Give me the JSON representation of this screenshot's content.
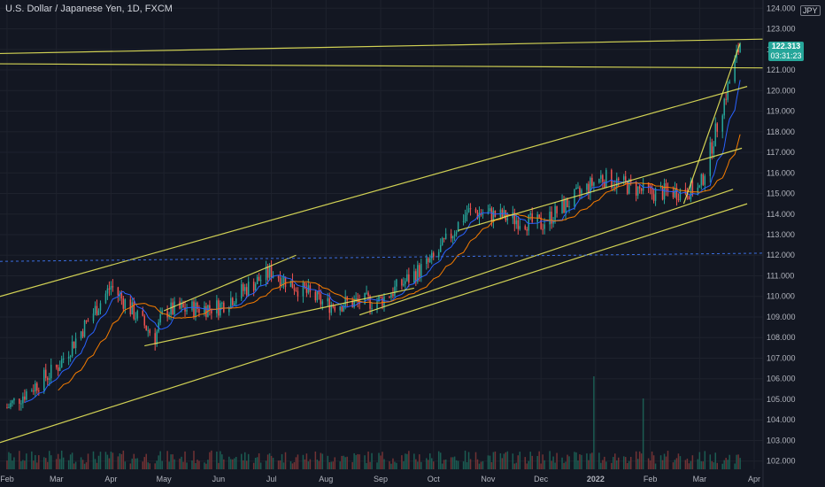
{
  "header": {
    "symbol_title": "U.S. Dollar / Japanese Yen, 1D, FXCM",
    "currency": "JPY"
  },
  "price_tag": {
    "price": "122.313",
    "countdown": "03:31:23",
    "color": "#26a69a"
  },
  "colors": {
    "background": "#131722",
    "up": "#26a69a",
    "down": "#ef5350",
    "trendline": "#e6e65a",
    "ma_fast": "#2962ff",
    "ma_slow": "#f57c00",
    "axis_text": "#b2b5be"
  },
  "chart_data": {
    "type": "candlestick",
    "y_ticks": [
      "124.000",
      "123.000",
      "122.000",
      "121.000",
      "120.000",
      "119.000",
      "118.000",
      "117.000",
      "116.000",
      "115.000",
      "114.000",
      "113.000",
      "112.000",
      "111.000",
      "110.000",
      "109.000",
      "108.000",
      "107.000",
      "106.000",
      "105.000",
      "104.000",
      "103.000",
      "102.000"
    ],
    "x_ticks": [
      "Feb",
      "Mar",
      "Apr",
      "May",
      "Jun",
      "Jul",
      "Aug",
      "Sep",
      "Oct",
      "Nov",
      "Dec",
      "2022",
      "Feb",
      "Mar",
      "Apr"
    ],
    "ylim": [
      101.6,
      124.4
    ],
    "xlim": [
      "2021-01-28",
      "2022-04-06"
    ],
    "monthly_closes": [
      {
        "date": "2021-02-01",
        "close": 104.6
      },
      {
        "date": "2021-03-01",
        "close": 106.5
      },
      {
        "date": "2021-04-01",
        "close": 110.5
      },
      {
        "date": "2021-04-26",
        "close": 108.0
      },
      {
        "date": "2021-05-01",
        "close": 109.3
      },
      {
        "date": "2021-06-01",
        "close": 109.5
      },
      {
        "date": "2021-07-01",
        "close": 111.2
      },
      {
        "date": "2021-08-01",
        "close": 109.6
      },
      {
        "date": "2021-09-01",
        "close": 109.8
      },
      {
        "date": "2021-10-01",
        "close": 111.8
      },
      {
        "date": "2021-10-20",
        "close": 114.1
      },
      {
        "date": "2021-11-01",
        "close": 114.0
      },
      {
        "date": "2021-12-01",
        "close": 113.5
      },
      {
        "date": "2022-01-04",
        "close": 115.8
      },
      {
        "date": "2022-02-01",
        "close": 115.0
      },
      {
        "date": "2022-03-01",
        "close": 115.2
      },
      {
        "date": "2022-03-24",
        "close": 122.3
      }
    ],
    "grid": true,
    "legend": "none"
  }
}
